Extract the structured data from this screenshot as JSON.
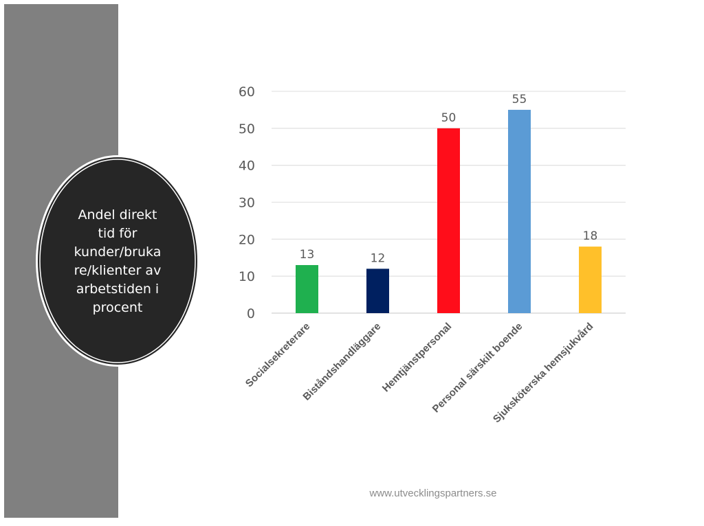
{
  "title_text": "Andel direkt\ntid för\nkunder/bruka\nre/klienter av\narbetstiden i\nprocent",
  "footer_text": "www.utvecklingspartners.se",
  "colors": {
    "side_panel": "#808080",
    "badge_fill": "#262626",
    "badge_ring": "#ffffff"
  },
  "chart_data": {
    "type": "bar",
    "categories": [
      "Socialsekreterare",
      "Biståndshandläggare",
      "Hemtjänstpersonal",
      "Personal särskilt boende",
      "Sjuksköterska hemsjukvård"
    ],
    "values": [
      13,
      12,
      50,
      55,
      18
    ],
    "data_labels": [
      "13",
      "12",
      "50",
      "55",
      "18"
    ],
    "colors": [
      "#1fb04f",
      "#002060",
      "#ff0d1a",
      "#5b9bd5",
      "#ffc02a"
    ],
    "ylim": [
      0,
      60
    ],
    "yticks": [
      0,
      10,
      20,
      30,
      40,
      50,
      60
    ],
    "grid": true,
    "legend": "none"
  }
}
